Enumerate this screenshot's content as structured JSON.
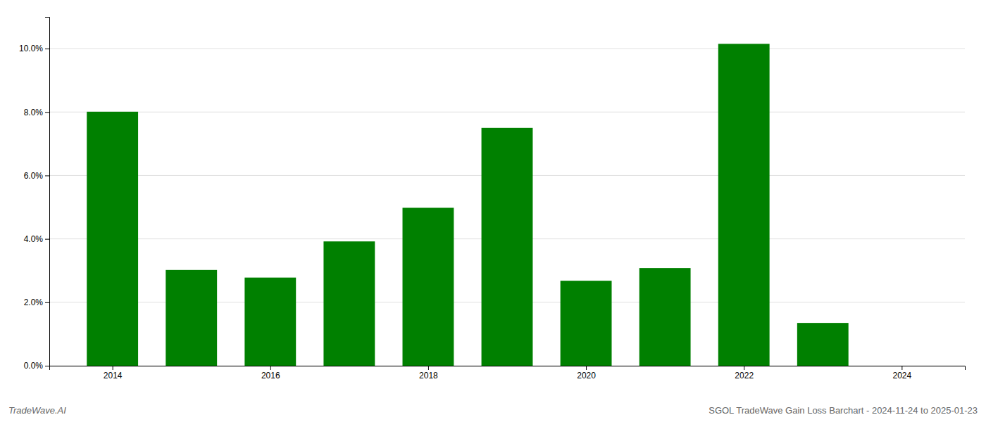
{
  "chart_data": {
    "type": "bar",
    "title": "SGOL TradeWave Gain Loss Barchart - 2024-11-24 to 2025-01-23",
    "annotations": [
      "TradeWave.AI"
    ],
    "x": [
      2014,
      2015,
      2016,
      2017,
      2018,
      2019,
      2020,
      2021,
      2022,
      2023
    ],
    "values": [
      0.0801,
      0.0302,
      0.0278,
      0.0392,
      0.0498,
      0.075,
      0.0268,
      0.0308,
      0.1015,
      0.0135
    ],
    "color": "#008000",
    "xlim": [
      2013.2,
      2024.8
    ],
    "xticks": [
      2014,
      2016,
      2018,
      2020,
      2022,
      2024
    ],
    "ylim": [
      0,
      0.11
    ],
    "yticks": [
      {
        "value": 0.0,
        "label": "0.0%"
      },
      {
        "value": 0.02,
        "label": "2.0%"
      },
      {
        "value": 0.04,
        "label": "4.0%"
      },
      {
        "value": 0.06,
        "label": "6.0%"
      },
      {
        "value": 0.08,
        "label": "8.0%"
      },
      {
        "value": 0.1,
        "label": "10.0%"
      }
    ],
    "grid": true
  }
}
